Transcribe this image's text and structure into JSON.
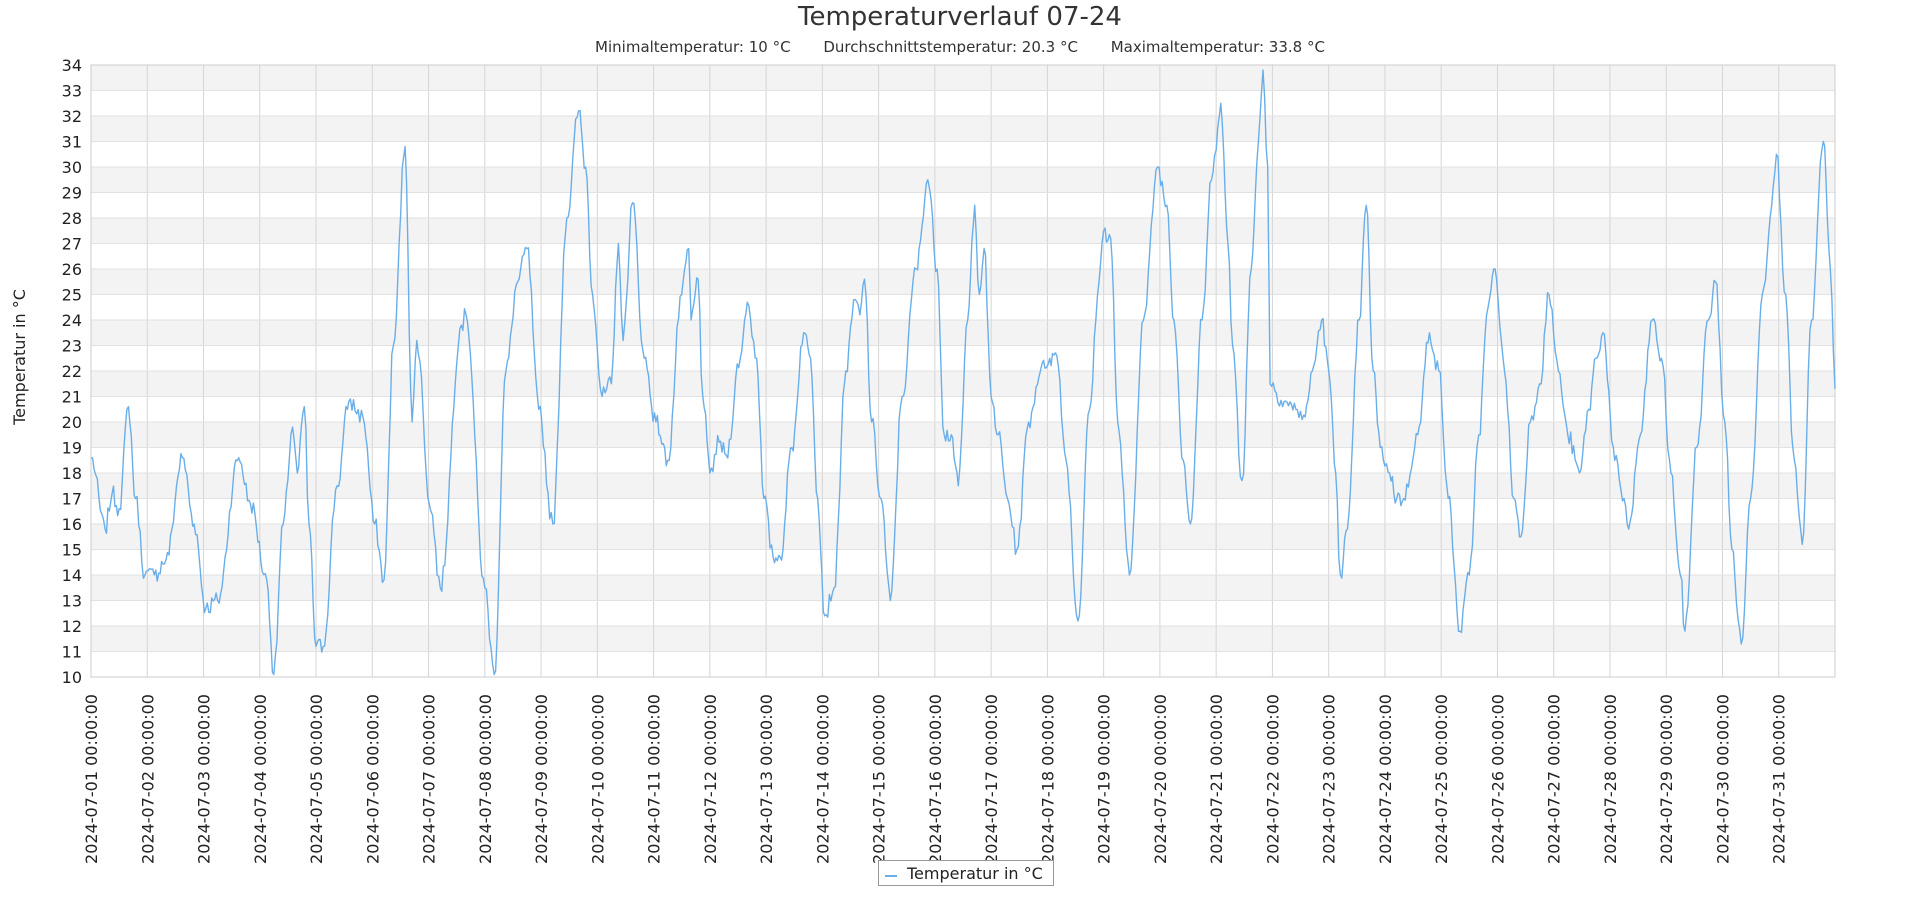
{
  "chart_data": {
    "type": "line",
    "title": "Temperaturverlauf 07-24",
    "subtitle": {
      "min": "Minimaltemperatur: 10 °C",
      "avg": "Durchschnittstemperatur: 20.3 °C",
      "max": "Maximaltemperatur: 33.8 °C"
    },
    "ylabel": "Temperatur in °C",
    "xlabel": "",
    "ylim": [
      10,
      34
    ],
    "xlim": [
      "2024-07-01 00:00",
      "2024-08-01 00:00"
    ],
    "y_ticks": [
      10,
      11,
      12,
      13,
      14,
      15,
      16,
      17,
      18,
      19,
      20,
      21,
      22,
      23,
      24,
      25,
      26,
      27,
      28,
      29,
      30,
      31,
      32,
      33,
      34
    ],
    "x_ticks": [
      "2024-07-01 00:00:00",
      "2024-07-02 00:00:00",
      "2024-07-03 00:00:00",
      "2024-07-04 00:00:00",
      "2024-07-05 00:00:00",
      "2024-07-06 00:00:00",
      "2024-07-07 00:00:00",
      "2024-07-08 00:00:00",
      "2024-07-09 00:00:00",
      "2024-07-10 00:00:00",
      "2024-07-11 00:00:00",
      "2024-07-12 00:00:00",
      "2024-07-13 00:00:00",
      "2024-07-14 00:00:00",
      "2024-07-15 00:00:00",
      "2024-07-16 00:00:00",
      "2024-07-17 00:00:00",
      "2024-07-18 00:00:00",
      "2024-07-19 00:00:00",
      "2024-07-20 00:00:00",
      "2024-07-21 00:00:00",
      "2024-07-22 00:00:00",
      "2024-07-23 00:00:00",
      "2024-07-24 00:00:00",
      "2024-07-25 00:00:00",
      "2024-07-26 00:00:00",
      "2024-07-27 00:00:00",
      "2024-07-28 00:00:00",
      "2024-07-29 00:00:00",
      "2024-07-30 00:00:00",
      "2024-07-31 00:00:00"
    ],
    "grid": true,
    "legend_position": "bottom-center",
    "series": [
      {
        "name": "Temperatur in °C",
        "color": "#6aaee9",
        "points": [
          [
            "2024-07-01 00:00",
            18.6
          ],
          [
            "2024-07-01 06:00",
            15.8
          ],
          [
            "2024-07-01 09:00",
            17.2
          ],
          [
            "2024-07-01 12:00",
            16.6
          ],
          [
            "2024-07-01 16:00",
            20.6
          ],
          [
            "2024-07-01 19:00",
            17.0
          ],
          [
            "2024-07-01 23:00",
            14.0
          ],
          [
            "2024-07-02 03:00",
            14.0
          ],
          [
            "2024-07-02 08:00",
            14.6
          ],
          [
            "2024-07-02 15:00",
            18.6
          ],
          [
            "2024-07-02 20:00",
            16.0
          ],
          [
            "2024-07-03 01:00",
            12.7
          ],
          [
            "2024-07-03 06:00",
            13.0
          ],
          [
            "2024-07-03 15:00",
            18.6
          ],
          [
            "2024-07-03 20:00",
            16.8
          ],
          [
            "2024-07-04 03:00",
            13.8
          ],
          [
            "2024-07-04 06:00",
            10.1
          ],
          [
            "2024-07-04 10:00",
            16.0
          ],
          [
            "2024-07-04 14:00",
            19.8
          ],
          [
            "2024-07-04 16:00",
            18.0
          ],
          [
            "2024-07-04 19:00",
            20.6
          ],
          [
            "2024-07-04 21:00",
            16.0
          ],
          [
            "2024-07-05 00:00",
            11.2
          ],
          [
            "2024-07-05 03:00",
            11.2
          ],
          [
            "2024-07-05 09:00",
            17.5
          ],
          [
            "2024-07-05 14:00",
            20.8
          ],
          [
            "2024-07-05 20:00",
            20.2
          ],
          [
            "2024-07-06 01:00",
            16.0
          ],
          [
            "2024-07-06 05:00",
            13.8
          ],
          [
            "2024-07-06 09:00",
            23.0
          ],
          [
            "2024-07-06 14:00",
            30.8
          ],
          [
            "2024-07-06 17:00",
            20.0
          ],
          [
            "2024-07-06 19:00",
            23.2
          ],
          [
            "2024-07-07 01:00",
            16.5
          ],
          [
            "2024-07-07 05:00",
            13.5
          ],
          [
            "2024-07-07 14:00",
            23.8
          ],
          [
            "2024-07-07 16:00",
            24.2
          ],
          [
            "2024-07-08 00:00",
            13.5
          ],
          [
            "2024-07-08 04:00",
            10.1
          ],
          [
            "2024-07-08 09:00",
            22.0
          ],
          [
            "2024-07-08 14:00",
            25.5
          ],
          [
            "2024-07-08 18:00",
            26.8
          ],
          [
            "2024-07-08 23:00",
            20.5
          ],
          [
            "2024-07-09 05:00",
            16.0
          ],
          [
            "2024-07-09 11:00",
            28.0
          ],
          [
            "2024-07-09 16:00",
            32.2
          ],
          [
            "2024-07-09 19:00",
            30.0
          ],
          [
            "2024-07-09 22:00",
            25.0
          ],
          [
            "2024-07-10 02:00",
            21.0
          ],
          [
            "2024-07-10 06:00",
            21.5
          ],
          [
            "2024-07-10 09:00",
            27.0
          ],
          [
            "2024-07-10 11:00",
            23.2
          ],
          [
            "2024-07-10 15:00",
            28.6
          ],
          [
            "2024-07-10 20:00",
            22.5
          ],
          [
            "2024-07-11 01:00",
            20.0
          ],
          [
            "2024-07-11 06:00",
            18.5
          ],
          [
            "2024-07-11 12:00",
            25.0
          ],
          [
            "2024-07-11 15:00",
            26.8
          ],
          [
            "2024-07-11 16:00",
            24.0
          ],
          [
            "2024-07-11 19:00",
            25.6
          ],
          [
            "2024-07-11 21:00",
            21.0
          ],
          [
            "2024-07-12 00:00",
            18.0
          ],
          [
            "2024-07-12 04:00",
            19.2
          ],
          [
            "2024-07-12 07:00",
            18.7
          ],
          [
            "2024-07-12 13:00",
            22.5
          ],
          [
            "2024-07-12 16:00",
            24.7
          ],
          [
            "2024-07-12 20:00",
            22.5
          ],
          [
            "2024-07-12 23:00",
            17.0
          ],
          [
            "2024-07-13 03:00",
            14.7
          ],
          [
            "2024-07-13 06:00",
            14.7
          ],
          [
            "2024-07-13 11:00",
            19.0
          ],
          [
            "2024-07-13 16:00",
            23.5
          ],
          [
            "2024-07-13 19:00",
            22.5
          ],
          [
            "2024-07-13 22:00",
            17.0
          ],
          [
            "2024-07-14 01:00",
            12.4
          ],
          [
            "2024-07-14 05:00",
            13.5
          ],
          [
            "2024-07-14 10:00",
            22.0
          ],
          [
            "2024-07-14 14:00",
            24.8
          ],
          [
            "2024-07-14 16:00",
            24.2
          ],
          [
            "2024-07-14 18:00",
            25.6
          ],
          [
            "2024-07-14 21:00",
            20.0
          ],
          [
            "2024-07-15 01:00",
            17.0
          ],
          [
            "2024-07-15 05:00",
            13.0
          ],
          [
            "2024-07-15 10:00",
            21.0
          ],
          [
            "2024-07-15 16:00",
            26.0
          ],
          [
            "2024-07-15 21:00",
            29.5
          ],
          [
            "2024-07-16 01:00",
            26.0
          ],
          [
            "2024-07-16 04:00",
            19.5
          ],
          [
            "2024-07-16 07:00",
            19.5
          ],
          [
            "2024-07-16 10:00",
            17.5
          ],
          [
            "2024-07-16 14:00",
            24.0
          ],
          [
            "2024-07-16 17:00",
            28.5
          ],
          [
            "2024-07-16 19:00",
            25.0
          ],
          [
            "2024-07-16 21:00",
            26.8
          ],
          [
            "2024-07-17 00:00",
            21.0
          ],
          [
            "2024-07-17 03:00",
            19.5
          ],
          [
            "2024-07-17 07:00",
            17.0
          ],
          [
            "2024-07-17 11:00",
            15.0
          ],
          [
            "2024-07-17 16:00",
            20.0
          ],
          [
            "2024-07-17 21:00",
            22.0
          ],
          [
            "2024-07-18 01:00",
            22.5
          ],
          [
            "2024-07-18 04:00",
            22.6
          ],
          [
            "2024-07-18 08:00",
            18.5
          ],
          [
            "2024-07-18 13:00",
            12.2
          ],
          [
            "2024-07-18 18:00",
            20.5
          ],
          [
            "2024-07-18 22:00",
            25.5
          ],
          [
            "2024-07-19 00:00",
            27.5
          ],
          [
            "2024-07-19 03:00",
            27.2
          ],
          [
            "2024-07-19 06:00",
            20.0
          ],
          [
            "2024-07-19 11:00",
            14.0
          ],
          [
            "2024-07-19 17:00",
            24.0
          ],
          [
            "2024-07-19 23:00",
            30.0
          ],
          [
            "2024-07-20 03:00",
            28.5
          ],
          [
            "2024-07-20 06:00",
            24.0
          ],
          [
            "2024-07-20 10:00",
            18.5
          ],
          [
            "2024-07-20 13:00",
            16.0
          ],
          [
            "2024-07-20 18:00",
            24.0
          ],
          [
            "2024-07-20 22:00",
            29.5
          ],
          [
            "2024-07-21 02:00",
            32.5
          ],
          [
            "2024-07-21 05:00",
            27.0
          ],
          [
            "2024-07-21 07:00",
            23.0
          ],
          [
            "2024-07-21 11:00",
            17.7
          ],
          [
            "2024-07-21 15:00",
            26.0
          ],
          [
            "2024-07-21 18:00",
            31.0
          ],
          [
            "2024-07-21 20:00",
            33.8
          ],
          [
            "2024-07-21 22:00",
            30.0
          ],
          [
            "2024-07-21 23:00",
            21.5
          ],
          [
            "2024-07-22 05:00",
            20.8
          ],
          [
            "2024-07-22 10:00",
            20.5
          ],
          [
            "2024-07-22 14:00",
            20.2
          ],
          [
            "2024-07-22 17:00",
            22.0
          ],
          [
            "2024-07-22 21:00",
            24.0
          ],
          [
            "2024-07-23 00:00",
            22.0
          ],
          [
            "2024-07-23 03:00",
            18.0
          ],
          [
            "2024-07-23 05:00",
            14.0
          ],
          [
            "2024-07-23 08:00",
            15.8
          ],
          [
            "2024-07-23 13:00",
            24.0
          ],
          [
            "2024-07-23 16:00",
            28.5
          ],
          [
            "2024-07-23 19:00",
            22.0
          ],
          [
            "2024-07-23 22:00",
            19.0
          ],
          [
            "2024-07-24 02:00",
            18.0
          ],
          [
            "2024-07-24 05:00",
            17.0
          ],
          [
            "2024-07-24 08:00",
            17.0
          ],
          [
            "2024-07-24 14:00",
            19.5
          ],
          [
            "2024-07-24 19:00",
            23.5
          ],
          [
            "2024-07-24 23:00",
            22.0
          ],
          [
            "2024-07-25 03:00",
            17.0
          ],
          [
            "2024-07-25 08:00",
            11.8
          ],
          [
            "2024-07-25 12:00",
            14.0
          ],
          [
            "2024-07-25 16:00",
            19.5
          ],
          [
            "2024-07-25 20:00",
            24.5
          ],
          [
            "2024-07-25 23:00",
            26.0
          ],
          [
            "2024-07-26 03:00",
            22.0
          ],
          [
            "2024-07-26 07:00",
            17.0
          ],
          [
            "2024-07-26 10:00",
            15.5
          ],
          [
            "2024-07-26 14:00",
            20.0
          ],
          [
            "2024-07-26 18:00",
            21.5
          ],
          [
            "2024-07-26 22:00",
            25.0
          ],
          [
            "2024-07-27 02:00",
            22.0
          ],
          [
            "2024-07-27 06:00",
            19.5
          ],
          [
            "2024-07-27 11:00",
            18.0
          ],
          [
            "2024-07-27 15:00",
            20.5
          ],
          [
            "2024-07-27 18:00",
            22.5
          ],
          [
            "2024-07-27 21:00",
            23.5
          ],
          [
            "2024-07-28 02:00",
            18.5
          ],
          [
            "2024-07-28 06:00",
            17.0
          ],
          [
            "2024-07-28 08:00",
            15.8
          ],
          [
            "2024-07-28 13:00",
            19.5
          ],
          [
            "2024-07-28 18:00",
            24.0
          ],
          [
            "2024-07-28 22:00",
            22.5
          ],
          [
            "2024-07-29 02:00",
            18.0
          ],
          [
            "2024-07-29 06:00",
            14.0
          ],
          [
            "2024-07-29 08:00",
            11.8
          ],
          [
            "2024-07-29 13:00",
            19.0
          ],
          [
            "2024-07-29 18:00",
            24.0
          ],
          [
            "2024-07-29 21:00",
            25.5
          ],
          [
            "2024-07-30 01:00",
            20.0
          ],
          [
            "2024-07-30 04:00",
            15.0
          ],
          [
            "2024-07-30 08:00",
            11.3
          ],
          [
            "2024-07-30 12:00",
            17.0
          ],
          [
            "2024-07-30 17:00",
            25.0
          ],
          [
            "2024-07-30 21:00",
            28.5
          ],
          [
            "2024-07-30 23:00",
            30.5
          ],
          [
            "2024-07-31 03:00",
            25.0
          ],
          [
            "2024-07-31 06:00",
            19.0
          ],
          [
            "2024-07-31 10:00",
            15.2
          ],
          [
            "2024-07-31 14:00",
            24.0
          ],
          [
            "2024-07-31 19:00",
            31.0
          ],
          [
            "2024-07-31 22:00",
            26.0
          ],
          [
            "2024-08-01 00:00",
            21.3
          ]
        ]
      }
    ]
  }
}
